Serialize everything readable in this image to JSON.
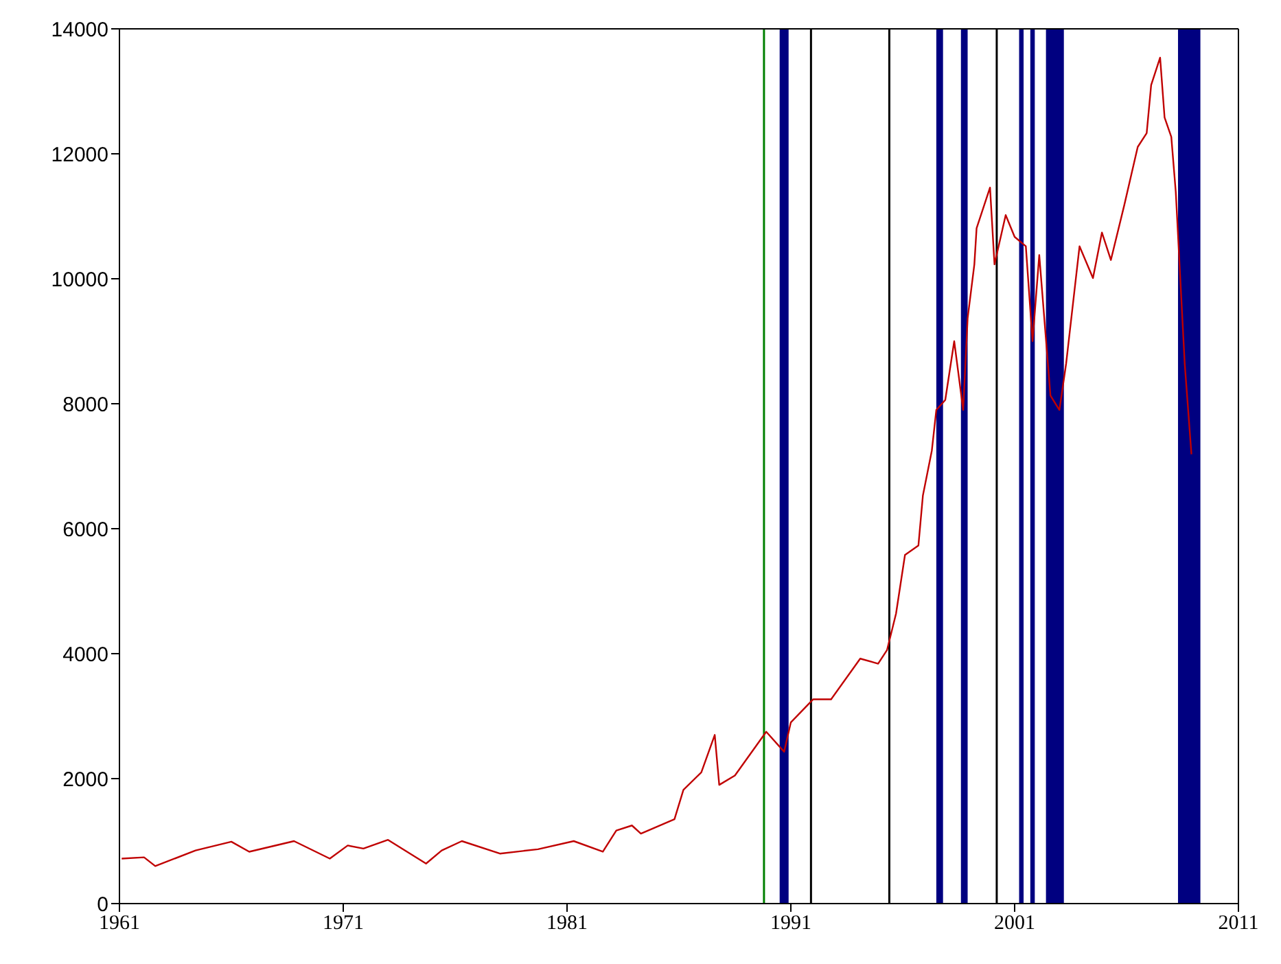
{
  "chart_data": {
    "type": "line",
    "x": [
      1961.1,
      1962.1,
      1962.6,
      1964.4,
      1966.0,
      1966.8,
      1968.8,
      1970.4,
      1971.2,
      1971.9,
      1973.0,
      1974.7,
      1975.4,
      1976.3,
      1978.0,
      1979.7,
      1981.3,
      1982.6,
      1983.2,
      1983.9,
      1984.3,
      1985.8,
      1986.2,
      1987.0,
      1987.6,
      1987.8,
      1988.5,
      1989.9,
      1990.7,
      1991.0,
      1992.0,
      1992.8,
      1994.1,
      1994.9,
      1995.3,
      1995.7,
      1996.1,
      1996.7,
      1996.9,
      1997.3,
      1997.5,
      1997.9,
      1998.3,
      1998.7,
      1998.9,
      1999.2,
      1999.3,
      1999.9,
      2000.1,
      2000.6,
      2001.0,
      2001.5,
      2001.8,
      2002.1,
      2002.6,
      2003.0,
      2003.3,
      2003.9,
      2004.5,
      2004.9,
      2005.3,
      2005.9,
      2006.5,
      2006.9,
      2007.1,
      2007.5,
      2007.7,
      2008.0,
      2008.2,
      2008.6,
      2008.9
    ],
    "values": [
      720,
      740,
      600,
      850,
      990,
      830,
      1000,
      720,
      930,
      880,
      1020,
      640,
      850,
      1000,
      800,
      870,
      1000,
      830,
      1170,
      1250,
      1120,
      1350,
      1820,
      2100,
      2700,
      1900,
      2050,
      2750,
      2430,
      2900,
      3270,
      3270,
      3920,
      3840,
      4060,
      4640,
      5580,
      5730,
      6530,
      7250,
      7900,
      8060,
      9000,
      7900,
      9370,
      10230,
      10810,
      11460,
      10230,
      11020,
      10670,
      10520,
      9000,
      10380,
      8130,
      7900,
      8640,
      10520,
      10010,
      10740,
      10300,
      11180,
      12110,
      12330,
      13100,
      13540,
      12580,
      12270,
      11390,
      8640,
      7190
    ],
    "color": "#c00000",
    "xlim": [
      1961,
      2011
    ],
    "xticks": [
      1961,
      1971,
      1981,
      1991,
      2001,
      2011
    ],
    "ylim": [
      0,
      14000
    ],
    "yticks": [
      0,
      2000,
      4000,
      6000,
      8000,
      10000,
      12000,
      14000
    ],
    "ref_lines": [
      {
        "axis": "x",
        "value": 1989.8,
        "color": "#008000"
      },
      {
        "axis": "x",
        "value": 1991.9,
        "color": "#000000"
      },
      {
        "axis": "x",
        "value": 1995.4,
        "color": "#000000"
      },
      {
        "axis": "x",
        "value": 2000.2,
        "color": "#000000"
      }
    ],
    "bands": [
      {
        "axis": "x",
        "from": 1990.5,
        "to": 1990.9,
        "color": "#000080"
      },
      {
        "axis": "x",
        "from": 1997.5,
        "to": 1997.8,
        "color": "#000080"
      },
      {
        "axis": "x",
        "from": 1998.6,
        "to": 1998.9,
        "color": "#000080"
      },
      {
        "axis": "x",
        "from": 2001.2,
        "to": 2001.4,
        "color": "#000080"
      },
      {
        "axis": "x",
        "from": 2001.7,
        "to": 2001.9,
        "color": "#000080"
      },
      {
        "axis": "x",
        "from": 2002.4,
        "to": 2003.2,
        "color": "#000080"
      },
      {
        "axis": "x",
        "from": 2008.3,
        "to": 2009.3,
        "color": "#000080"
      }
    ]
  }
}
